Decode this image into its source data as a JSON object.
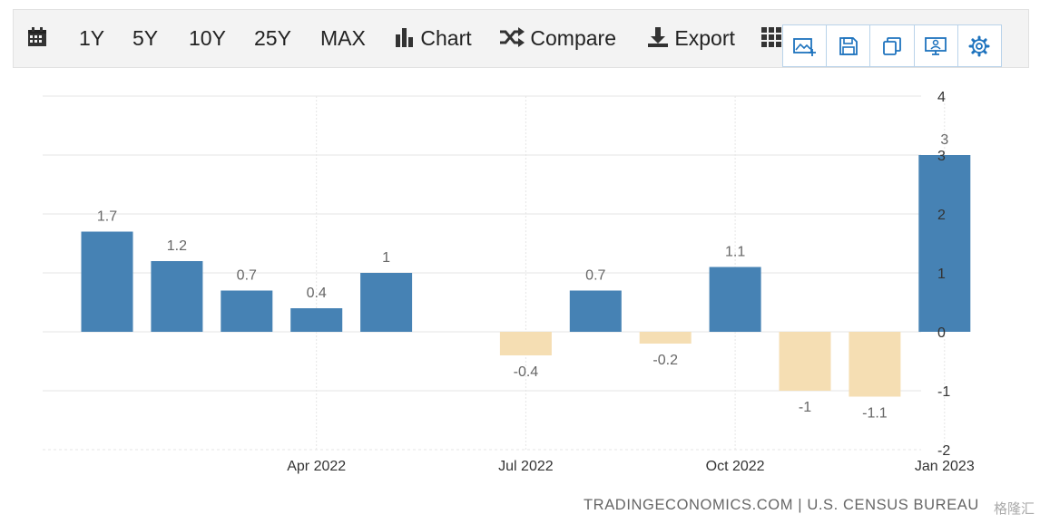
{
  "toolbar": {
    "ranges": [
      "1Y",
      "5Y",
      "10Y",
      "25Y",
      "MAX"
    ],
    "chart_label": "Chart",
    "compare_label": "Compare",
    "export_label": "Export"
  },
  "panel": {
    "icons": [
      "image-add-icon",
      "save-icon",
      "copy-icon",
      "embed-icon",
      "gear-icon"
    ]
  },
  "colors": {
    "positive": "#4682b4",
    "negative": "#f5deb3",
    "grid": "#e5e5e5"
  },
  "chart_data": {
    "type": "bar",
    "x": [
      "2022-01",
      "2022-02",
      "2022-03",
      "2022-04",
      "2022-05",
      "2022-06",
      "2022-07",
      "2022-08",
      "2022-09",
      "2022-10",
      "2022-11",
      "2022-12",
      "2023-01"
    ],
    "values": [
      1.7,
      1.2,
      0.7,
      0.4,
      1,
      null,
      -0.4,
      0.7,
      -0.2,
      1.1,
      -1,
      -1.1,
      3
    ],
    "data_labels": [
      "1.7",
      "1.2",
      "0.7",
      "0.4",
      "1",
      "",
      "-0.4",
      "0.7",
      "-0.2",
      "1.1",
      "-1",
      "-1.1",
      "3"
    ],
    "x_ticks": [
      "Apr 2022",
      "Jul 2022",
      "Oct 2022",
      "Jan 2023"
    ],
    "ylim": [
      -2,
      4
    ],
    "y_ticks": [
      "4",
      "3",
      "2",
      "1",
      "0",
      "-1",
      "-2"
    ],
    "y_axis_side": "right",
    "grid": true,
    "legend": "none"
  },
  "footer": {
    "source": "TRADINGECONOMICS.COM | U.S. CENSUS BUREAU",
    "watermark": "格隆汇"
  }
}
